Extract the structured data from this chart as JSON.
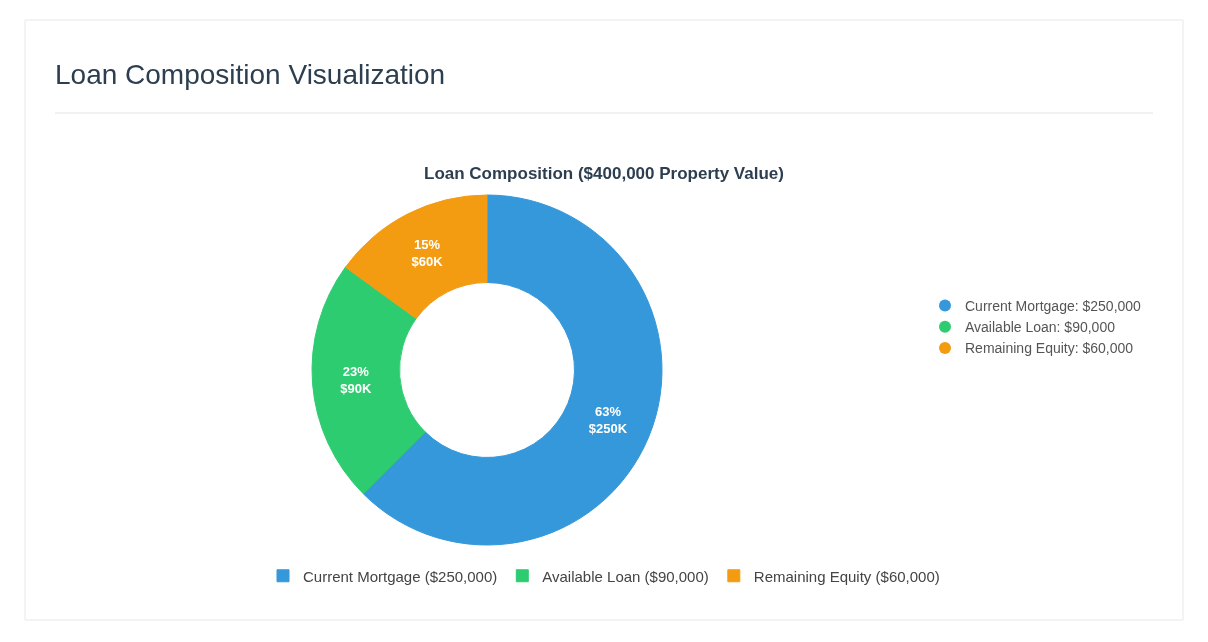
{
  "chart_data": {
    "type": "donut",
    "title": "Loan Composition Visualization",
    "subtitle": "Loan Composition ($400,000 Property Value)",
    "categories": [
      "Current Mortgage ($250,000)",
      "Available Loan ($90,000)",
      "Remaining Equity ($60,000)"
    ],
    "values": [
      250000,
      90000,
      60000
    ],
    "colors": [
      "#3498db",
      "#2ecc71",
      "#f39c12"
    ],
    "value_labels": [
      "63%\n$250K",
      "23%\n$90K",
      "15%\n$60K"
    ],
    "legend": "bottom",
    "annotations": [
      "Current Mortgage: $250,000",
      "Available Loan: $90,000",
      "Remaining Equity: $60,000"
    ]
  }
}
